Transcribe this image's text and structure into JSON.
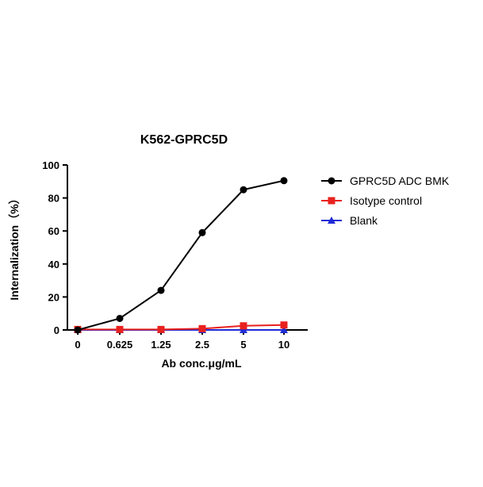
{
  "chart_data": {
    "type": "line",
    "title": "K562-GPRC5D",
    "xlabel": "Ab conc.μg/mL",
    "ylabel": "Internalization（%）",
    "categories": [
      "0",
      "0.625",
      "1.25",
      "2.5",
      "5",
      "10"
    ],
    "ylim": [
      0,
      100
    ],
    "yticks": [
      0,
      20,
      40,
      60,
      80,
      100
    ],
    "grid": false,
    "legend_position": "right",
    "series": [
      {
        "name": "GPRC5D ADC BMK",
        "color": "#000000",
        "marker": "circle",
        "values": [
          0,
          7,
          24,
          59,
          85,
          90.5
        ]
      },
      {
        "name": "Isotype control",
        "color": "#e8211e",
        "marker": "square",
        "values": [
          0.3,
          0.3,
          0.3,
          0.8,
          2.5,
          3.0
        ]
      },
      {
        "name": "Blank",
        "color": "#1f2bd6",
        "marker": "triangle",
        "values": [
          0,
          0,
          0,
          0,
          0,
          0
        ]
      }
    ]
  }
}
